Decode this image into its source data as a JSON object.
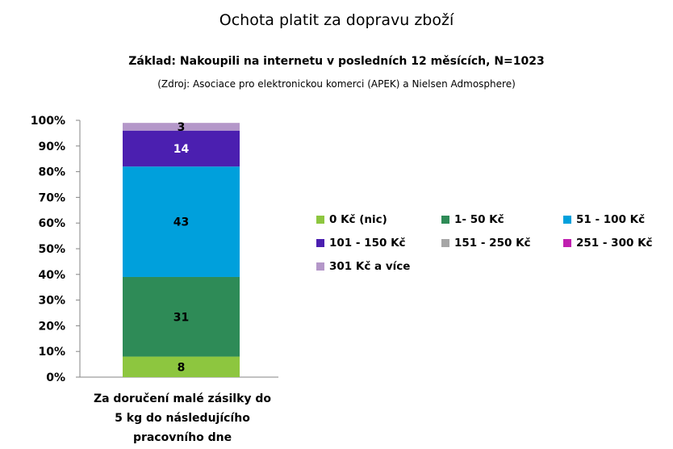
{
  "chart_data": {
    "type": "bar",
    "stacked": true,
    "title": "Ochota platit za dopravu zboží",
    "subtitle": "Základ: Nakoupili na internetu v posledních 12 měsících, N=1023",
    "source": "(Zdroj: Asociace pro elektronickou komerci (APEK) a Nielsen Admosphere)",
    "categories": [
      "Za doručení malé zásilky do 5 kg do následujícího pracovního dne"
    ],
    "category_lines": [
      "Za doručení malé zásilky do",
      "5 kg do následujícího",
      "pracovního dne"
    ],
    "ylim": [
      0,
      100
    ],
    "yticks": [
      "0%",
      "10%",
      "20%",
      "30%",
      "40%",
      "50%",
      "60%",
      "70%",
      "80%",
      "90%",
      "100%"
    ],
    "legend_position": "right",
    "series": [
      {
        "name": "0 Kč (nic)",
        "color": "#8DC63F",
        "values": [
          8
        ],
        "label": "8",
        "label_color": "#000000"
      },
      {
        "name": "1- 50 Kč",
        "color": "#2E8B57",
        "values": [
          31
        ],
        "label": "31",
        "label_color": "#000000"
      },
      {
        "name": "51 - 100 Kč",
        "color": "#00A0DC",
        "values": [
          43
        ],
        "label": "43",
        "label_color": "#000000"
      },
      {
        "name": "101 - 150 Kč",
        "color": "#4B1FB0",
        "values": [
          14
        ],
        "label": "14",
        "label_color": "#FFFFFF"
      },
      {
        "name": "151 - 250 Kč",
        "color": "#A6A6A6",
        "values": [
          0
        ],
        "label": "",
        "label_color": "#000000"
      },
      {
        "name": "251 - 300 Kč",
        "color": "#C020B0",
        "values": [
          0
        ],
        "label": "",
        "label_color": "#000000"
      },
      {
        "name": "301 Kč a více",
        "color": "#B497C9",
        "values": [
          3
        ],
        "label": "3",
        "label_color": "#000000"
      }
    ]
  }
}
